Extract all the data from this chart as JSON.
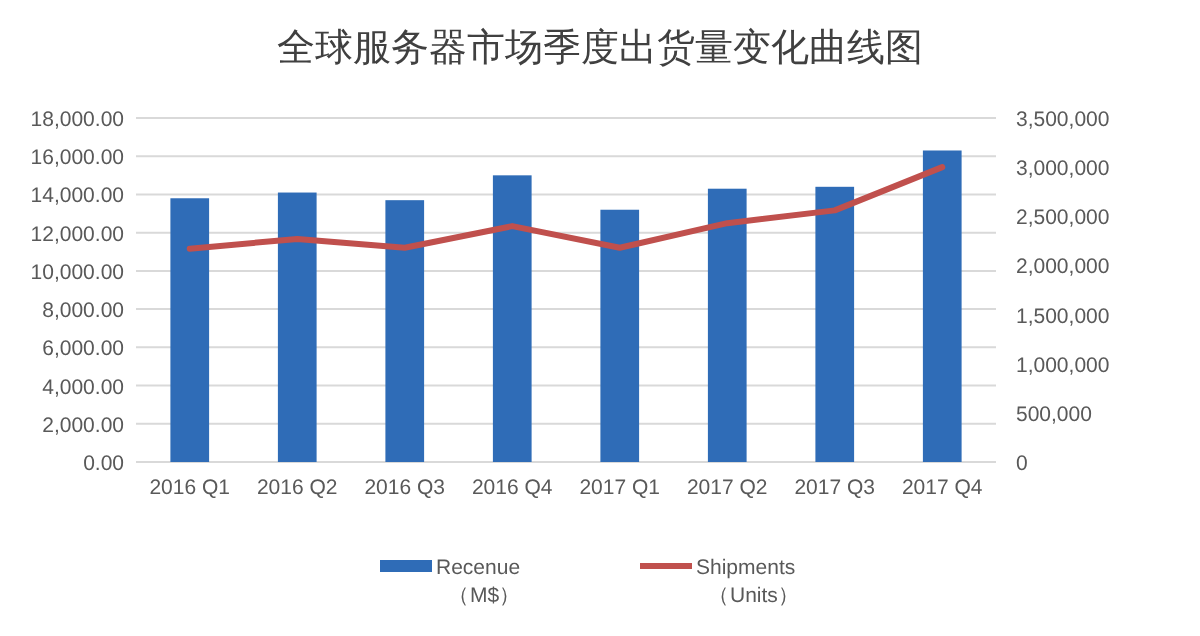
{
  "chart_data": {
    "type": "bar",
    "title": "全球服务器市场季度出货量变化曲线图",
    "categories": [
      "2016 Q1",
      "2016 Q2",
      "2016 Q3",
      "2016 Q4",
      "2017 Q1",
      "2017 Q2",
      "2017 Q3",
      "2017 Q4"
    ],
    "series": [
      {
        "name": "Recenue\n（M$）",
        "color": "#2f6cb7",
        "values": [
          13800,
          14100,
          13700,
          15000,
          13200,
          14300,
          14400,
          16300
        ]
      },
      {
        "name": "Shipments\n（Units）",
        "type": "line",
        "axis": "y2",
        "color": "#c0504d",
        "values": [
          2170000,
          2270000,
          2180000,
          2400000,
          2180000,
          2430000,
          2560000,
          3000000
        ]
      }
    ],
    "ylim": [
      0,
      18000
    ],
    "yticks": [
      {
        "value": 0,
        "label": "0.00"
      },
      {
        "value": 2000,
        "label": "2,000.00"
      },
      {
        "value": 4000,
        "label": "4,000.00"
      },
      {
        "value": 6000,
        "label": "6,000.00"
      },
      {
        "value": 8000,
        "label": "8,000.00"
      },
      {
        "value": 10000,
        "label": "10,000.00"
      },
      {
        "value": 12000,
        "label": "12,000.00"
      },
      {
        "value": 14000,
        "label": "14,000.00"
      },
      {
        "value": 16000,
        "label": "16,000.00"
      },
      {
        "value": 18000,
        "label": "18,000.00"
      }
    ],
    "y2lim": [
      0,
      3500000
    ],
    "y2ticks": [
      0,
      {
        "value": 500000,
        "label": "500,000"
      },
      {
        "value": 1000000,
        "label": "1,000,000"
      },
      {
        "value": 1500000,
        "label": "1,500,000"
      },
      {
        "value": 2000000,
        "label": "2,000,000"
      },
      {
        "value": 2500000,
        "label": "2,500,000"
      },
      {
        "value": 3000000,
        "label": "3,000,000"
      },
      {
        "value": 3500000,
        "label": "3,500,000"
      }
    ],
    "grid": "y",
    "legend": "bottom",
    "marker": "none"
  }
}
